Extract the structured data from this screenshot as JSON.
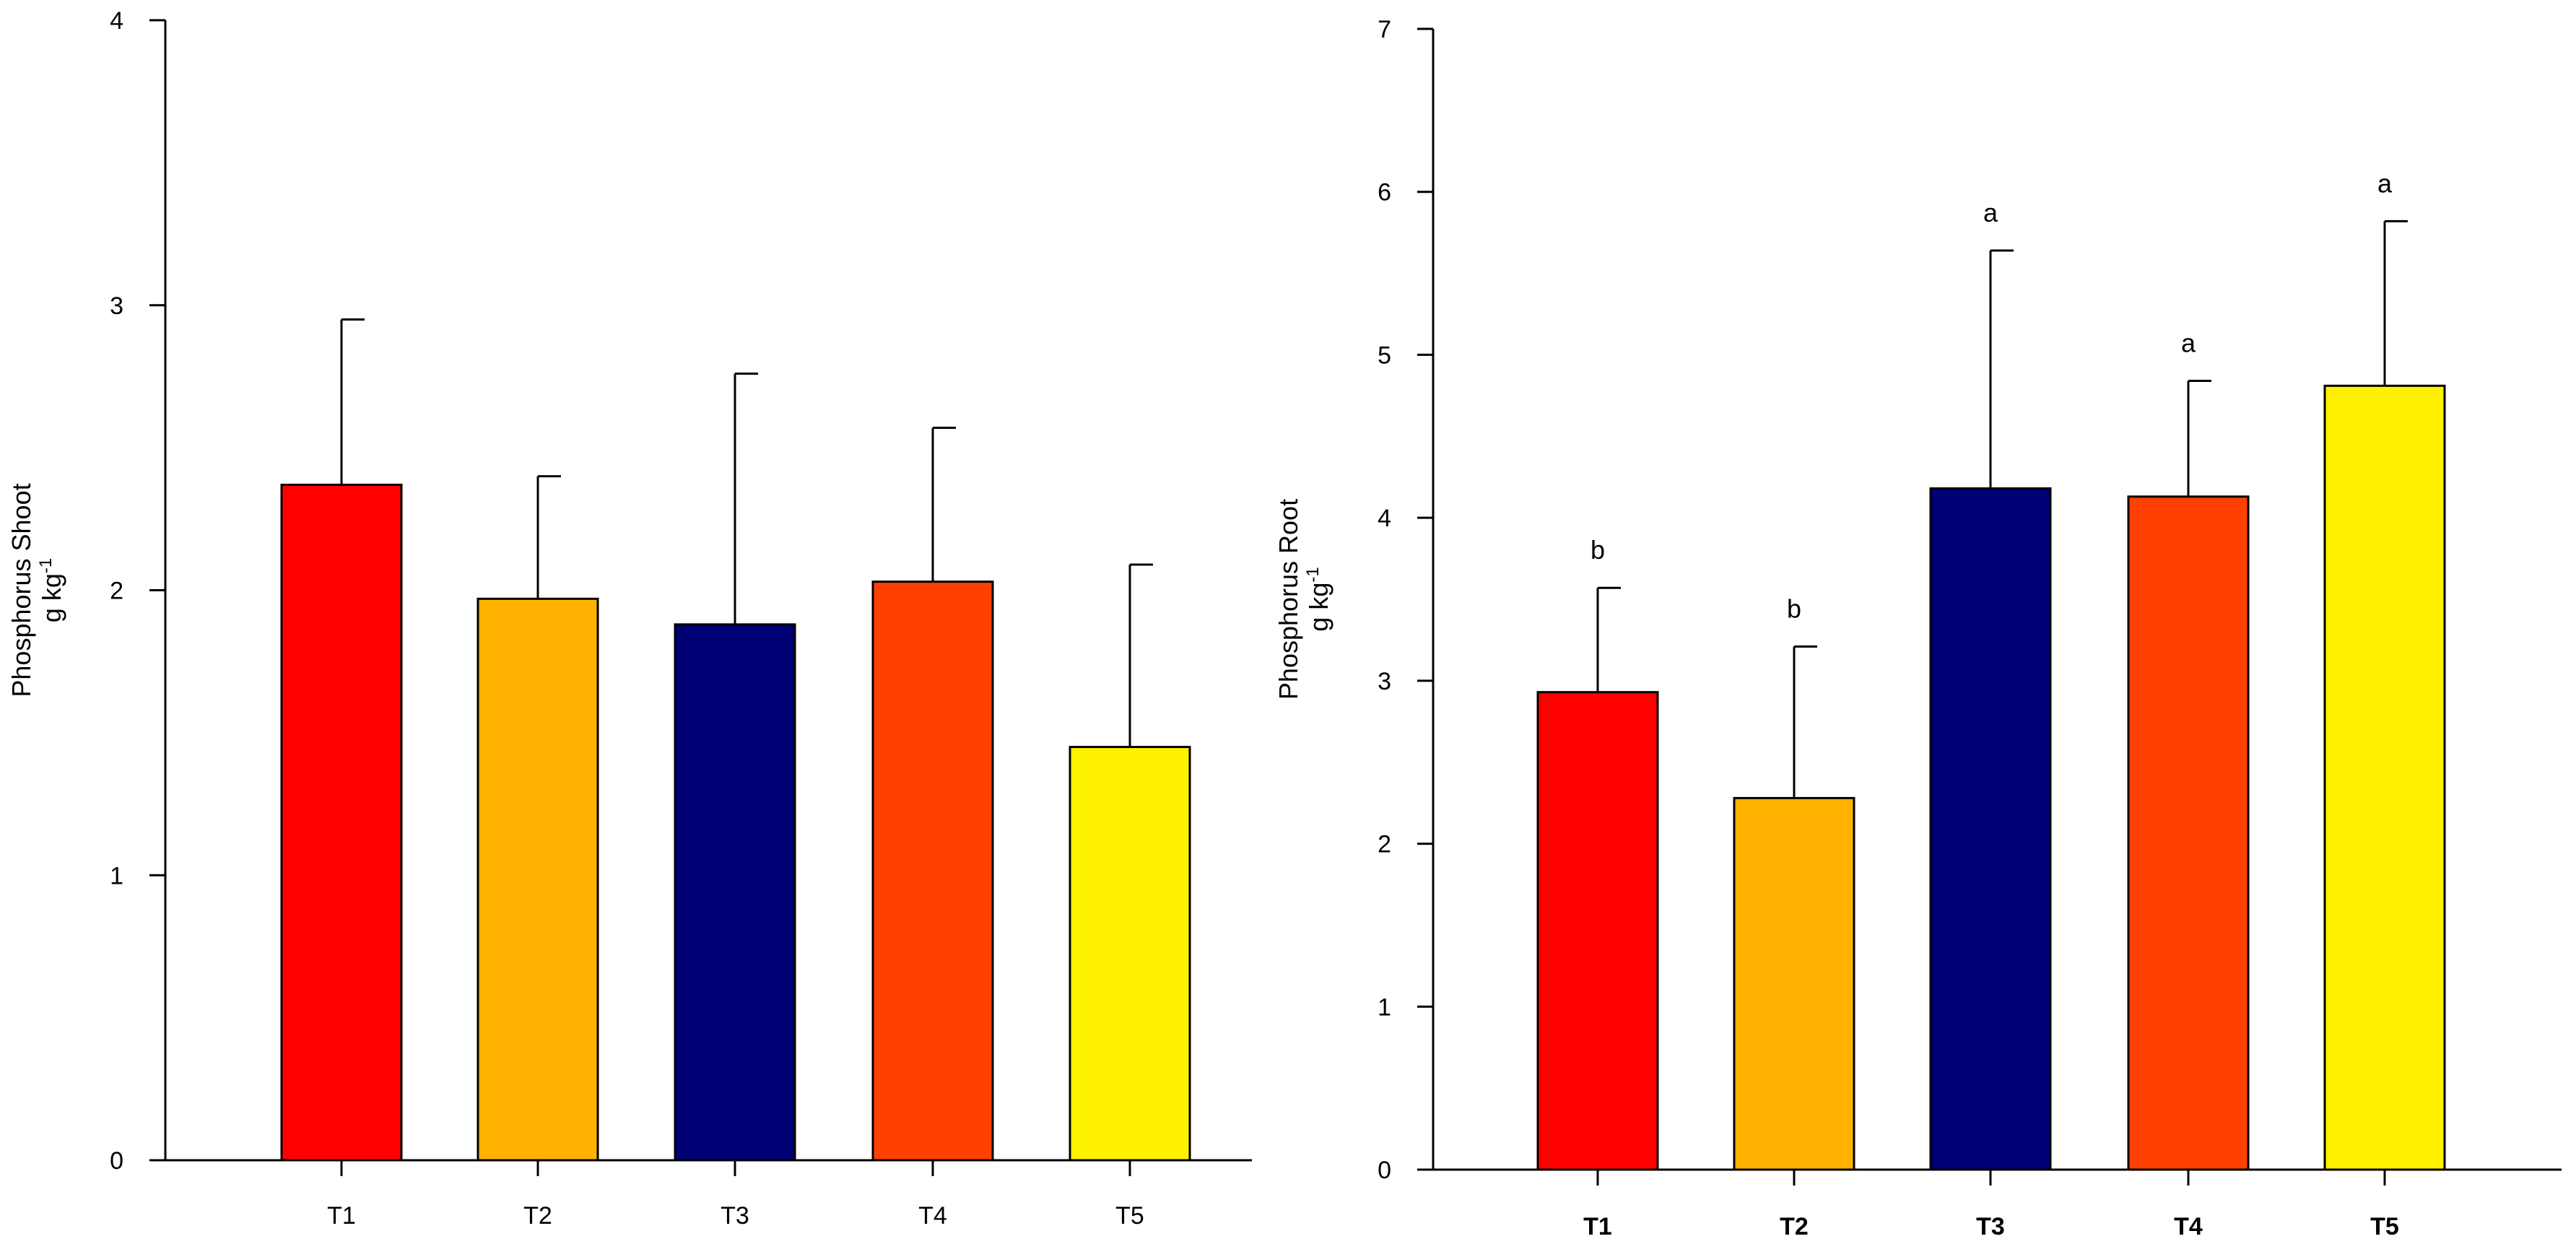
{
  "chart_data": [
    {
      "type": "bar",
      "title": "",
      "xlabel": "",
      "ylabel": "Phosphorus Shoot",
      "ylabel_unit": "g kg",
      "ylabel_unit_sup": "-1",
      "ylim": [
        0,
        4
      ],
      "yticks": [
        0,
        1,
        2,
        3,
        4
      ],
      "categories": [
        "T1",
        "T2",
        "T3",
        "T4",
        "T5"
      ],
      "values": [
        2.37,
        1.97,
        1.88,
        2.03,
        1.45
      ],
      "errors": [
        0.58,
        0.43,
        0.88,
        0.54,
        0.64
      ],
      "colors": [
        "#FF0000",
        "#FFB300",
        "#000075",
        "#FF4000",
        "#FFF200"
      ],
      "significance": [
        "",
        "",
        "",
        "",
        ""
      ],
      "bold_categories": false
    },
    {
      "type": "bar",
      "title": "",
      "xlabel": "",
      "ylabel": "Phosphorus Root",
      "ylabel_unit": "g kg",
      "ylabel_unit_sup": "-1",
      "ylim": [
        0,
        7
      ],
      "yticks": [
        0,
        1,
        2,
        3,
        4,
        5,
        6,
        7
      ],
      "categories": [
        "T1",
        "T2",
        "T3",
        "T4",
        "T5"
      ],
      "values": [
        2.93,
        2.28,
        4.18,
        4.13,
        4.81
      ],
      "errors": [
        0.64,
        0.93,
        1.46,
        0.71,
        1.01
      ],
      "colors": [
        "#FF0000",
        "#FFB300",
        "#000075",
        "#FF4000",
        "#FFF200"
      ],
      "significance": [
        "b",
        "b",
        "a",
        "a",
        "a"
      ],
      "bold_categories": true
    }
  ]
}
